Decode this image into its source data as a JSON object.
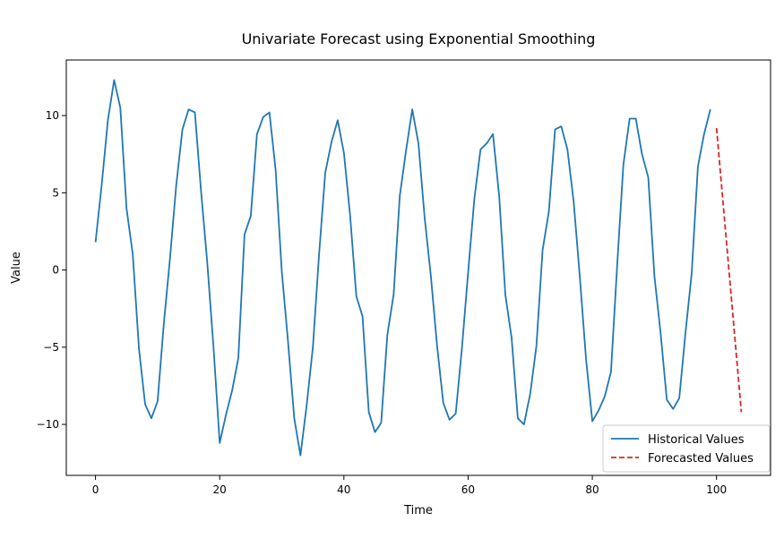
{
  "chart_data": {
    "type": "line",
    "title": "Univariate Forecast using Exponential Smoothing",
    "xlabel": "Time",
    "ylabel": "Value",
    "xlim": [
      -4.7,
      108.7
    ],
    "ylim": [
      -13.3,
      13.6
    ],
    "xticks": [
      0,
      20,
      40,
      60,
      80,
      100
    ],
    "yticks": [
      -10,
      -5,
      0,
      5,
      10
    ],
    "xtick_labels": [
      "0",
      "20",
      "40",
      "60",
      "80",
      "100"
    ],
    "ytick_labels": [
      "−10",
      "−5",
      "0",
      "5",
      "10"
    ],
    "grid": false,
    "legend_position": "lower-right",
    "series": [
      {
        "name": "Historical Values",
        "color": "#1f77b4",
        "style": "solid",
        "x": [
          0,
          1,
          2,
          3,
          4,
          5,
          6,
          7,
          8,
          9,
          10,
          11,
          12,
          13,
          14,
          15,
          16,
          17,
          18,
          19,
          20,
          21,
          22,
          23,
          24,
          25,
          26,
          27,
          28,
          29,
          30,
          31,
          32,
          33,
          34,
          35,
          36,
          37,
          38,
          39,
          40,
          41,
          42,
          43,
          44,
          45,
          46,
          47,
          48,
          49,
          50,
          51,
          52,
          53,
          54,
          55,
          56,
          57,
          58,
          59,
          60,
          61,
          62,
          63,
          64,
          65,
          66,
          67,
          68,
          69,
          70,
          71,
          72,
          73,
          74,
          75,
          76,
          77,
          78,
          79,
          80,
          81,
          82,
          83,
          84,
          85,
          86,
          87,
          88,
          89,
          90,
          91,
          92,
          93,
          94,
          95,
          96,
          97,
          98,
          99
        ],
        "values": [
          1.8,
          5.5,
          9.7,
          12.3,
          10.5,
          4.0,
          1.0,
          -5.1,
          -8.7,
          -9.6,
          -8.5,
          -3.5,
          0.8,
          5.5,
          9.1,
          10.4,
          10.2,
          5.1,
          0.5,
          -5.0,
          -11.2,
          -9.4,
          -7.8,
          -5.7,
          2.3,
          3.5,
          8.8,
          9.9,
          10.2,
          6.5,
          -0.1,
          -4.6,
          -9.6,
          -12.0,
          -8.8,
          -5.0,
          1.0,
          6.3,
          8.3,
          9.7,
          7.6,
          3.5,
          -1.7,
          -3.0,
          -9.2,
          -10.5,
          -9.9,
          -4.2,
          -1.6,
          4.8,
          7.7,
          10.4,
          8.2,
          3.4,
          -0.4,
          -4.9,
          -8.6,
          -9.7,
          -9.3,
          -5.1,
          -0.2,
          4.6,
          7.8,
          8.2,
          8.8,
          4.8,
          -1.6,
          -4.4,
          -9.6,
          -10.0,
          -8.0,
          -4.9,
          1.3,
          3.8,
          9.1,
          9.3,
          7.8,
          4.4,
          -0.5,
          -5.8,
          -9.8,
          -9.1,
          -8.2,
          -6.6,
          0.3,
          6.8,
          9.8,
          9.8,
          7.5,
          6.0,
          -0.4,
          -4.1,
          -8.4,
          -9.0,
          -8.3,
          -4.1,
          -0.2,
          6.7,
          8.8,
          10.4
        ]
      },
      {
        "name": "Forecasted Values",
        "color": "#d62728",
        "style": "dashed",
        "x": [
          100,
          104
        ],
        "values": [
          9.2,
          -9.2
        ]
      }
    ]
  }
}
